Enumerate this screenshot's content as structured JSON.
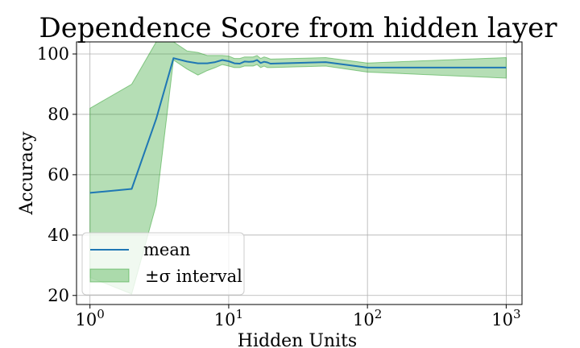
{
  "chart_data": {
    "type": "line",
    "title": "Dependence Score from hidden layer",
    "xlabel": "Hidden Units",
    "ylabel": "Accuracy",
    "xscale": "log",
    "xlim": [
      0.8,
      1300
    ],
    "ylim": [
      17,
      104
    ],
    "grid": true,
    "legend_position": "lower-left",
    "x_ticks": [
      {
        "value": 1,
        "base": "10",
        "exp": "0"
      },
      {
        "value": 10,
        "base": "10",
        "exp": "1"
      },
      {
        "value": 100,
        "base": "10",
        "exp": "2"
      },
      {
        "value": 1000,
        "base": "10",
        "exp": "3"
      }
    ],
    "y_ticks": [
      20,
      40,
      60,
      80,
      100
    ],
    "series": [
      {
        "name": "mean",
        "kind": "line",
        "color": "#1f77b4",
        "x": [
          1,
          2,
          3,
          4,
          5,
          6,
          7,
          8,
          9,
          10,
          11,
          12,
          13,
          14,
          15,
          16,
          17,
          18,
          19,
          20,
          50,
          100,
          1000
        ],
        "y": [
          54.0,
          55.3,
          78.5,
          98.6,
          97.5,
          96.9,
          96.9,
          97.3,
          98.0,
          97.6,
          96.9,
          96.8,
          97.5,
          97.4,
          97.5,
          98.0,
          97.0,
          97.4,
          97.2,
          96.8,
          97.3,
          95.5,
          95.5
        ]
      },
      {
        "name": "±σ interval",
        "kind": "band",
        "color": "#2ca02c",
        "x": [
          1,
          2,
          3,
          4,
          5,
          6,
          7,
          8,
          9,
          10,
          11,
          12,
          13,
          14,
          15,
          16,
          17,
          18,
          19,
          20,
          50,
          100,
          1000
        ],
        "lower": [
          26.0,
          20.5,
          50.0,
          98.0,
          95.0,
          93.0,
          94.5,
          95.5,
          96.5,
          96.0,
          95.5,
          95.5,
          96.0,
          96.0,
          96.0,
          96.5,
          95.5,
          96.0,
          95.5,
          95.5,
          96.0,
          94.0,
          92.0
        ],
        "upper": [
          82.0,
          90.0,
          104.0,
          104.0,
          101.0,
          100.5,
          99.5,
          99.5,
          99.5,
          99.3,
          98.5,
          98.5,
          99.0,
          99.0,
          99.0,
          99.5,
          98.5,
          99.0,
          98.7,
          98.3,
          98.8,
          97.0,
          98.8
        ]
      }
    ],
    "legend": [
      {
        "label": "mean",
        "kind": "line"
      },
      {
        "label": "±σ interval",
        "kind": "band"
      }
    ]
  }
}
